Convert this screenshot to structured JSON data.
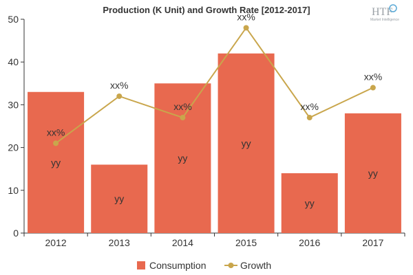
{
  "chart_data": {
    "type": "bar",
    "title": "Production (K Unit) and Growth Rate [2012-2017]",
    "categories": [
      "2012",
      "2013",
      "2014",
      "2015",
      "2016",
      "2017"
    ],
    "ylim": [
      0,
      50
    ],
    "yticks": [
      0,
      10,
      20,
      30,
      40,
      50
    ],
    "grid": false,
    "legend_position": "bottom",
    "series": [
      {
        "name": "Consumption",
        "type": "bar",
        "color": "#e8694f",
        "values": [
          33,
          16,
          35,
          42,
          14,
          28
        ],
        "labels": [
          "yy",
          "yy",
          "yy",
          "yy",
          "yy",
          "yy"
        ]
      },
      {
        "name": "Growth",
        "type": "line",
        "color": "#c9a64c",
        "values": [
          21,
          32,
          27,
          48,
          27,
          34
        ],
        "labels": [
          "xx%",
          "xx%",
          "xx%",
          "xx%",
          "xx%",
          "xx%"
        ]
      }
    ]
  },
  "logo": {
    "text": "HTF",
    "subtext": "Market Intelligence"
  }
}
